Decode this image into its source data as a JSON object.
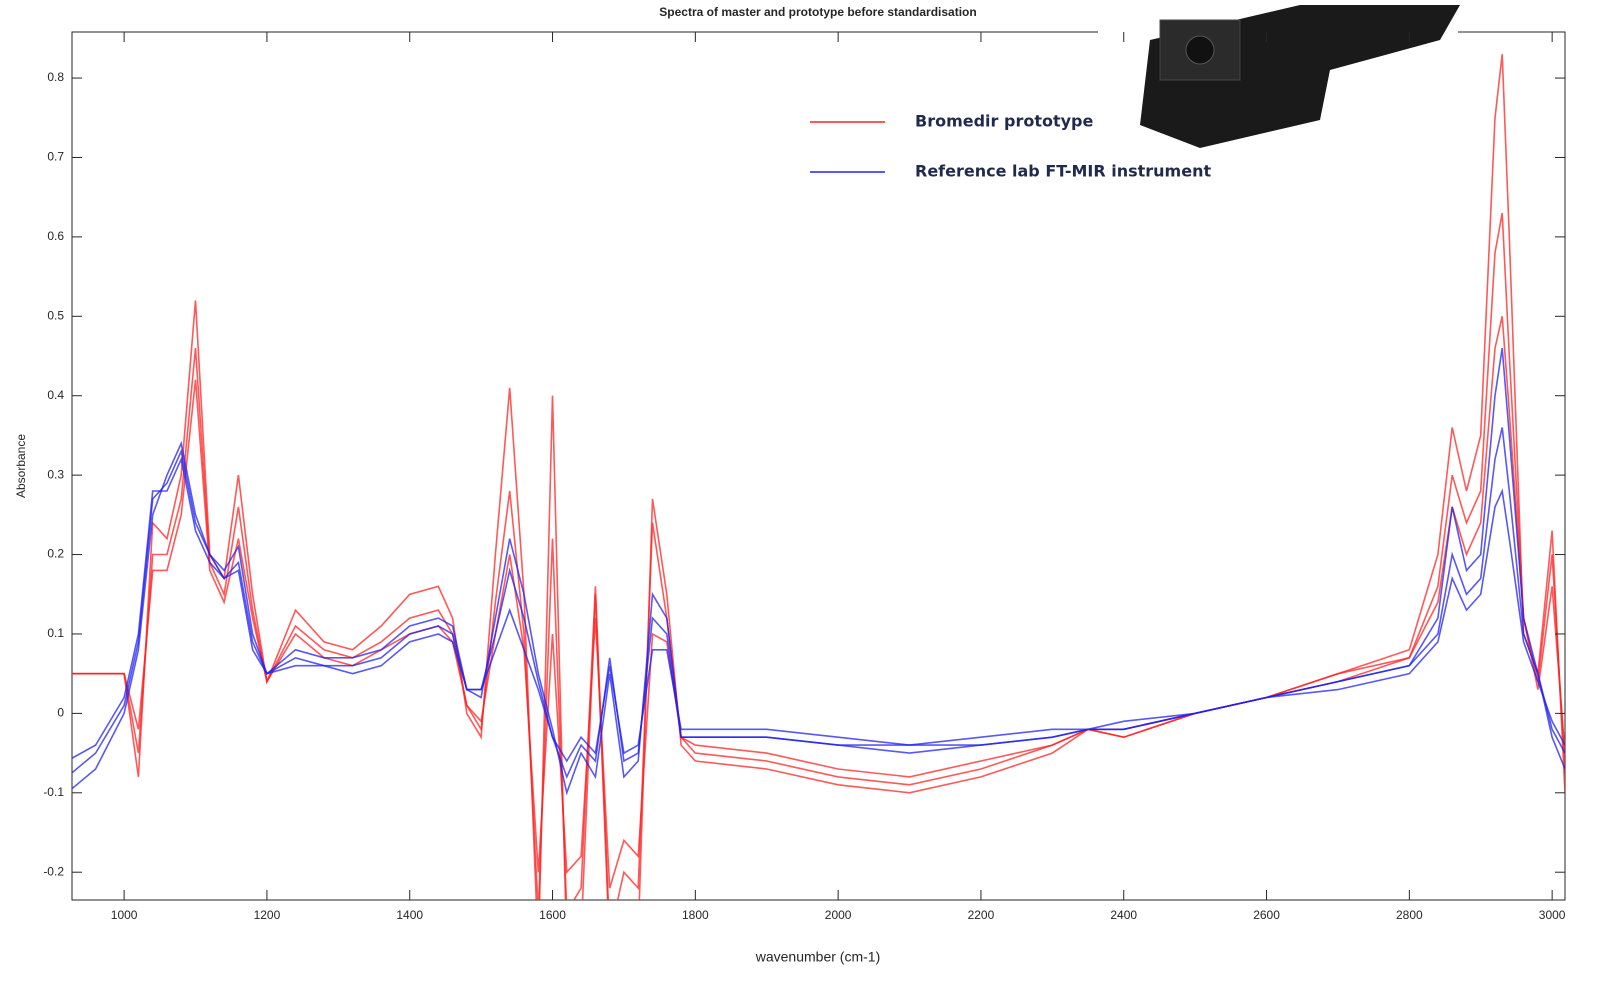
{
  "chart_data": {
    "type": "line",
    "title": "Spectra of master and prototype before standardisation",
    "xlabel": "wavenumber (cm-1)",
    "ylabel": "Absorbance",
    "x": [
      920,
      960,
      1000,
      1020,
      1040,
      1060,
      1080,
      1100,
      1120,
      1140,
      1160,
      1180,
      1200,
      1240,
      1280,
      1320,
      1360,
      1400,
      1440,
      1460,
      1480,
      1500,
      1520,
      1540,
      1560,
      1580,
      1600,
      1620,
      1640,
      1660,
      1680,
      1700,
      1720,
      1740,
      1760,
      1780,
      1800,
      1900,
      2000,
      2100,
      2200,
      2300,
      2350,
      2400,
      2500,
      2600,
      2700,
      2800,
      2840,
      2860,
      2880,
      2900,
      2920,
      2930,
      2940,
      2960,
      2980,
      3000,
      3018
    ],
    "series": [
      {
        "name": "Bromedir prototype",
        "color": "#ff2020",
        "values": [
          [
            0.05,
            0.05,
            0.05,
            -0.08,
            0.24,
            0.22,
            0.3,
            0.52,
            0.2,
            0.17,
            0.3,
            0.15,
            0.04,
            0.13,
            0.09,
            0.08,
            0.11,
            0.15,
            0.16,
            0.12,
            0.0,
            -0.03,
            0.2,
            0.41,
            0.15,
            -0.3,
            0.4,
            -0.3,
            -0.28,
            0.15,
            -0.3,
            -0.25,
            -0.28,
            0.27,
            0.15,
            -0.04,
            -0.06,
            -0.07,
            -0.09,
            -0.1,
            -0.08,
            -0.05,
            -0.02,
            -0.03,
            0.0,
            0.02,
            0.05,
            0.08,
            0.2,
            0.36,
            0.28,
            0.35,
            0.75,
            0.83,
            0.6,
            0.1,
            0.05,
            0.23,
            -0.1
          ],
          [
            0.05,
            0.05,
            0.05,
            -0.05,
            0.2,
            0.2,
            0.27,
            0.46,
            0.19,
            0.15,
            0.26,
            0.13,
            0.04,
            0.11,
            0.08,
            0.07,
            0.09,
            0.12,
            0.13,
            0.1,
            0.01,
            -0.02,
            0.14,
            0.28,
            0.1,
            -0.25,
            0.22,
            -0.25,
            -0.22,
            0.16,
            -0.28,
            -0.2,
            -0.22,
            0.24,
            0.12,
            -0.03,
            -0.05,
            -0.06,
            -0.08,
            -0.09,
            -0.07,
            -0.04,
            -0.02,
            -0.03,
            0.0,
            0.02,
            0.05,
            0.07,
            0.16,
            0.3,
            0.24,
            0.28,
            0.58,
            0.63,
            0.45,
            0.12,
            0.04,
            0.2,
            -0.07
          ],
          [
            0.05,
            0.05,
            0.05,
            -0.02,
            0.18,
            0.18,
            0.25,
            0.42,
            0.18,
            0.14,
            0.22,
            0.12,
            0.04,
            0.1,
            0.07,
            0.06,
            0.08,
            0.1,
            0.11,
            0.09,
            0.01,
            -0.01,
            0.1,
            0.2,
            0.08,
            -0.2,
            0.1,
            -0.2,
            -0.18,
            0.12,
            -0.22,
            -0.16,
            -0.18,
            0.1,
            0.09,
            -0.03,
            -0.04,
            -0.05,
            -0.07,
            -0.08,
            -0.06,
            -0.04,
            -0.02,
            -0.02,
            0.0,
            0.02,
            0.04,
            0.07,
            0.14,
            0.26,
            0.2,
            0.24,
            0.46,
            0.5,
            0.38,
            0.12,
            0.03,
            0.16,
            -0.05
          ]
        ]
      },
      {
        "name": "Reference lab FT-MIR instrument",
        "color": "#2020f0",
        "values": [
          [
            -0.1,
            -0.07,
            0.0,
            0.08,
            0.25,
            0.3,
            0.34,
            0.25,
            0.2,
            0.18,
            0.21,
            0.1,
            0.05,
            0.08,
            0.07,
            0.07,
            0.08,
            0.11,
            0.12,
            0.11,
            0.03,
            0.02,
            0.12,
            0.22,
            0.15,
            0.05,
            -0.02,
            -0.1,
            -0.05,
            -0.08,
            0.05,
            -0.08,
            -0.06,
            0.15,
            0.12,
            -0.03,
            -0.03,
            -0.03,
            -0.04,
            -0.05,
            -0.04,
            -0.03,
            -0.02,
            -0.02,
            0.0,
            0.02,
            0.04,
            0.06,
            0.12,
            0.26,
            0.18,
            0.2,
            0.4,
            0.46,
            0.35,
            0.12,
            0.05,
            -0.03,
            -0.07
          ],
          [
            -0.08,
            -0.05,
            0.01,
            0.09,
            0.27,
            0.29,
            0.33,
            0.24,
            0.2,
            0.17,
            0.19,
            0.09,
            0.05,
            0.07,
            0.06,
            0.06,
            0.07,
            0.1,
            0.11,
            0.1,
            0.03,
            0.03,
            0.1,
            0.18,
            0.12,
            0.04,
            -0.03,
            -0.08,
            -0.04,
            -0.06,
            0.07,
            -0.06,
            -0.05,
            0.12,
            0.1,
            -0.03,
            -0.03,
            -0.03,
            -0.04,
            -0.04,
            -0.04,
            -0.03,
            -0.02,
            -0.02,
            0.0,
            0.02,
            0.04,
            0.06,
            0.1,
            0.2,
            0.15,
            0.17,
            0.32,
            0.36,
            0.28,
            0.1,
            0.05,
            -0.02,
            -0.05
          ],
          [
            -0.06,
            -0.04,
            0.02,
            0.1,
            0.28,
            0.28,
            0.32,
            0.23,
            0.19,
            0.17,
            0.18,
            0.08,
            0.05,
            0.06,
            0.06,
            0.05,
            0.06,
            0.09,
            0.1,
            0.09,
            0.03,
            0.03,
            0.08,
            0.13,
            0.08,
            0.03,
            -0.03,
            -0.06,
            -0.03,
            -0.05,
            0.06,
            -0.05,
            -0.04,
            0.08,
            0.08,
            -0.02,
            -0.02,
            -0.02,
            -0.03,
            -0.04,
            -0.03,
            -0.02,
            -0.02,
            -0.01,
            0.0,
            0.02,
            0.03,
            0.05,
            0.09,
            0.17,
            0.13,
            0.15,
            0.26,
            0.28,
            0.22,
            0.09,
            0.04,
            -0.01,
            -0.04
          ]
        ]
      }
    ],
    "xlim": [
      927,
      3018
    ],
    "ylim": [
      -0.235,
      0.858
    ],
    "xticks": [
      1000,
      1200,
      1400,
      1600,
      1800,
      2000,
      2200,
      2400,
      2600,
      2800,
      3000
    ],
    "yticks": [
      -0.2,
      -0.1,
      0,
      0.1,
      0.2,
      0.3,
      0.4,
      0.5,
      0.6,
      0.7,
      0.8
    ],
    "grid": false
  }
}
